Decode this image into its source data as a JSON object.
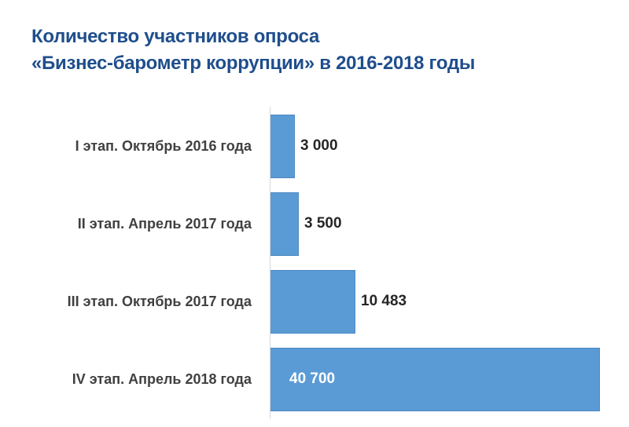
{
  "title": {
    "line1": "Количество участников опроса",
    "line2": "«Бизнес-барометр коррупции» в 2016-2018 годы"
  },
  "colors": {
    "title": "#1F4E8C",
    "bar": "#5B9BD5",
    "category_text": "#404040",
    "value_text": "#262626",
    "value_text_inside": "#FFFFFF"
  },
  "chart_data": {
    "type": "bar",
    "orientation": "horizontal",
    "title": "Количество участников опроса «Бизнес-барометр коррупции» в 2016-2018 годы",
    "xlabel": "",
    "ylabel": "",
    "grid": false,
    "legend": null,
    "categories": [
      "I этап. Октябрь 2016 года",
      "II этап. Апрель 2017 года",
      "III этап. Октябрь 2017 года",
      "IV этап. Апрель 2018 года"
    ],
    "values": [
      3000,
      3500,
      10483,
      40700
    ],
    "labels": [
      "3 000",
      "3 500",
      "10 483",
      "40 700"
    ],
    "xlim": [
      0,
      40700
    ]
  }
}
